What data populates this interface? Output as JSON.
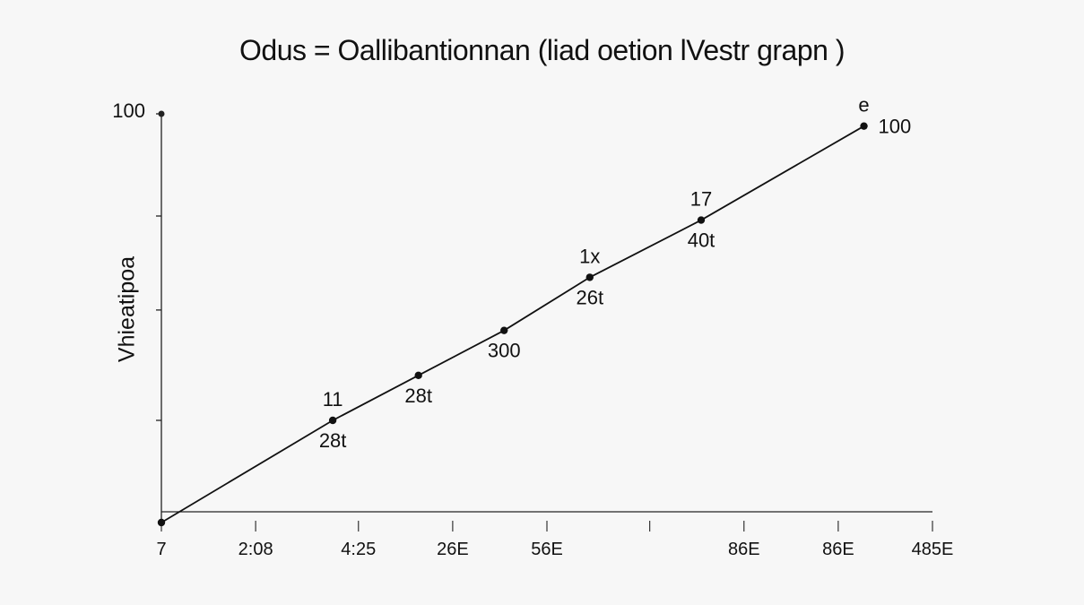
{
  "chart_data": {
    "type": "line",
    "title": "Odus = Oallibantionnan (liad oetion lVestr grapn )",
    "xlabel": "",
    "ylabel": "Vhieatipoa",
    "x_tick_labels": [
      "7",
      "2:08",
      "4:25",
      "26E",
      "56E",
      "",
      "86E",
      "86E",
      "485E"
    ],
    "y_tick_labels": [
      "100",
      "",
      "",
      "",
      ""
    ],
    "series": [
      {
        "points": [
          {
            "x": 0,
            "y": 0
          },
          {
            "x": 2,
            "y": 25
          },
          {
            "x": 3,
            "y": 36
          },
          {
            "x": 4,
            "y": 47
          },
          {
            "x": 5,
            "y": 60
          },
          {
            "x": 6.3,
            "y": 74
          },
          {
            "x": 8.2,
            "y": 97
          }
        ]
      }
    ],
    "annotations": [
      {
        "text": "11",
        "x": 2,
        "y": 25,
        "position": "above"
      },
      {
        "text": "28t",
        "x": 2,
        "y": 25,
        "position": "below"
      },
      {
        "text": "28t",
        "x": 3,
        "y": 36,
        "position": "below"
      },
      {
        "text": "300",
        "x": 4,
        "y": 47,
        "position": "below"
      },
      {
        "text": "1x",
        "x": 5,
        "y": 60,
        "position": "above"
      },
      {
        "text": "26t",
        "x": 5,
        "y": 60,
        "position": "below"
      },
      {
        "text": "17",
        "x": 6.3,
        "y": 74,
        "position": "above"
      },
      {
        "text": "40t",
        "x": 6.3,
        "y": 74,
        "position": "below"
      },
      {
        "text": "e",
        "x": 8.2,
        "y": 97,
        "position": "above"
      },
      {
        "text": "100",
        "x": 8.2,
        "y": 97,
        "position": "right"
      }
    ],
    "xlim": [
      0,
      9
    ],
    "ylim": [
      0,
      100
    ],
    "grid": false,
    "colors": {
      "line": "#111111",
      "axis": "#222222",
      "background": "#f7f7f7"
    }
  }
}
